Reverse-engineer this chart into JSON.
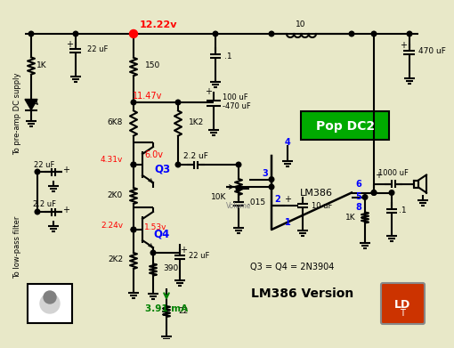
{
  "bg_color": "#e8e8c8",
  "line_color": "#000000",
  "lw": 1.5,
  "voltages": {
    "v1": "12.22v",
    "v2": "11.47v",
    "v3": "6.0v",
    "v4": "4.31v",
    "v5": "2.24v",
    "v6": "1.53v",
    "v7": "3.91 mA"
  },
  "labels": {
    "supply": "To pre-amp DC supply",
    "filter": "To low-pass filter",
    "q3label": "Q3",
    "q4label": "Q4",
    "q3q4": "Q3 = Q4 = 2N3904",
    "lm386": "LM386",
    "version": "LM386 Version",
    "popdc2": "Pop DC2",
    "volume": "Volume",
    "r1": "1K",
    "r2": "6K8",
    "r3": "1K2",
    "r4": "2K0",
    "r5": "2K2",
    "r6": "150",
    "r7": "10K",
    "r8": "10",
    "r9": "1K",
    "r10": "22",
    "r11": "390",
    "c1": "22 uF",
    "c2": "22 uF",
    "c3": ".1",
    "c4": "470 uF",
    "c5": "100 uF",
    "c6": "-470 uF",
    "c7": "2.2 uF",
    "c8": "22 uF",
    "c9": ".015",
    "c10": "10 uF",
    "c11": "1000 uF",
    "c12": ".1",
    "c13": "2.2 uF",
    "l1": "10",
    "pin1": "1",
    "pin2": "2",
    "pin3": "3",
    "pin4": "4",
    "pin5": "5",
    "pin6": "6",
    "pin8": "8"
  }
}
